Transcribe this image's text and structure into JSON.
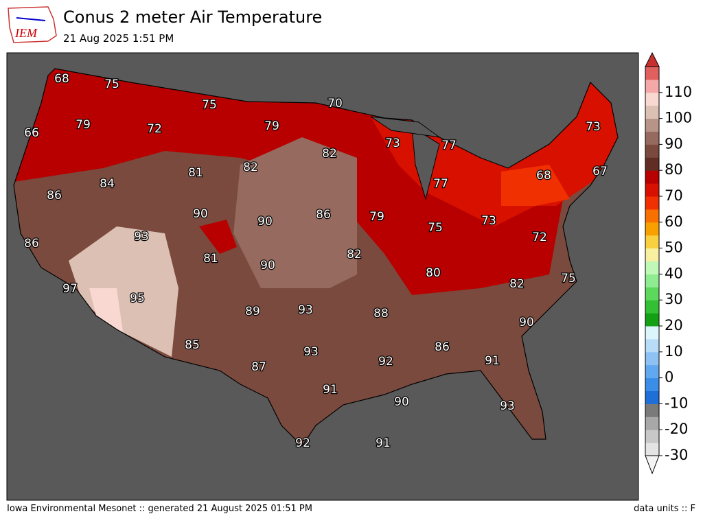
{
  "header": {
    "logo": "IEM",
    "title": "Conus 2 meter Air Temperature",
    "subtitle": "21 Aug 2025 1:51 PM"
  },
  "map": {
    "contour_labels": [
      68,
      75,
      75,
      70,
      66,
      79,
      72,
      79,
      73,
      77,
      73,
      82,
      82,
      81,
      68,
      67,
      84,
      86,
      77,
      90,
      90,
      86,
      79,
      75,
      73,
      93,
      86,
      72,
      81,
      90,
      82,
      80,
      75,
      97,
      95,
      82,
      89,
      93,
      88,
      90,
      85,
      93,
      86,
      92,
      91,
      87,
      91,
      90,
      93,
      92,
      91
    ]
  },
  "colorbar": {
    "lim": [
      -30,
      120
    ],
    "ticks": [
      -30,
      -20,
      -10,
      0,
      10,
      20,
      30,
      40,
      50,
      60,
      70,
      80,
      90,
      100,
      110
    ],
    "levels": [
      "#e4e4e4",
      "#c8c8c8",
      "#a8a8a8",
      "#7a7a7a",
      "#1e6fd8",
      "#3a8ee8",
      "#62a8f0",
      "#8ec2f4",
      "#b8dcf8",
      "#dcf4fc",
      "#14a014",
      "#34c034",
      "#5cd85c",
      "#90ec90",
      "#c0f8b8",
      "#f8f0a0",
      "#f8d040",
      "#f8a000",
      "#f87000",
      "#f03000",
      "#d81000",
      "#b80000",
      "#602e24",
      "#7a4a3e",
      "#966a5e",
      "#b89488",
      "#dcc0b4",
      "#f8d8d0",
      "#f4a8a8",
      "#e06060"
    ]
  },
  "footer": {
    "left": "Iowa Environmental Mesonet :: generated 21 August 2025 01:51 PM",
    "right": "data units :: F"
  }
}
